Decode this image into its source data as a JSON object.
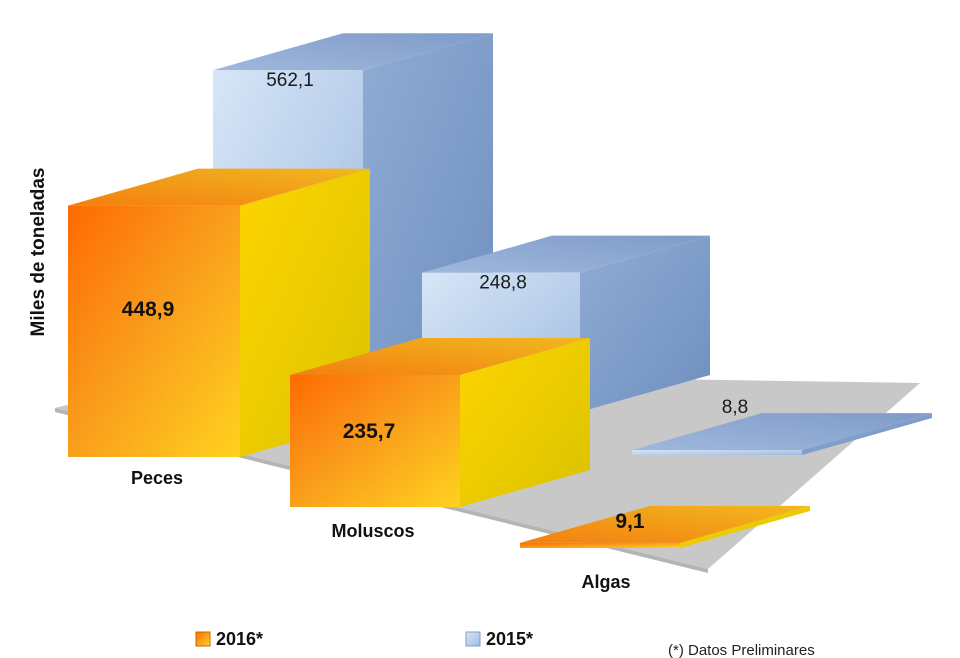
{
  "chart_data": {
    "type": "bar",
    "style": "3d",
    "title": "",
    "xlabel": "",
    "ylabel": "Miles de toneladas",
    "categories": [
      "Peces",
      "Moluscos",
      "Algas"
    ],
    "series": [
      {
        "name": "2016*",
        "values": [
          448.9,
          235.7,
          9.1
        ],
        "labels": [
          "448,9",
          "235,7",
          "9,1"
        ]
      },
      {
        "name": "2015*",
        "values": [
          562.1,
          248.8,
          8.8
        ],
        "labels": [
          "562,1",
          "248,8",
          "8,8"
        ]
      }
    ],
    "legend_position": "bottom",
    "grid": false,
    "note": "(*) Datos Preliminares",
    "colors": {
      "2016_front": "#f7941d",
      "2016_side": "#e6d300",
      "2016_top": "#f0a020",
      "2015_front": "#c6d8ee",
      "2015_side": "#7d9cc8",
      "2015_top": "#8eaad2",
      "floor": "#c6c6c6"
    }
  }
}
